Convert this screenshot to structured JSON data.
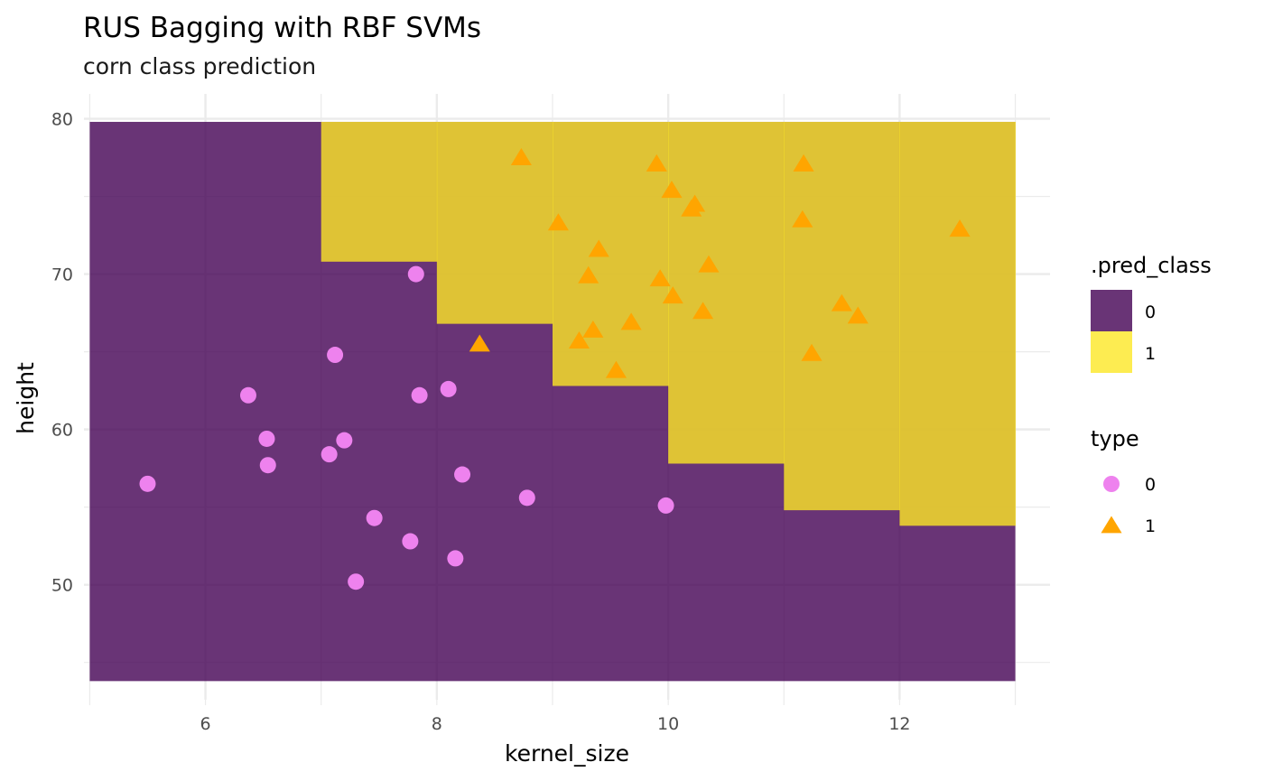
{
  "chart_data": {
    "type": "scatter",
    "title": "RUS Bagging with RBF SVMs",
    "subtitle": "corn class prediction",
    "xlabel": "kernel_size",
    "ylabel": "height",
    "xlim": [
      4.95,
      13.3
    ],
    "ylim": [
      42.6,
      81.6
    ],
    "x_ticks": [
      6,
      8,
      10,
      12
    ],
    "y_ticks": [
      50,
      60,
      70,
      80
    ],
    "x_tick_labels": [
      "6",
      "8",
      "10",
      "12"
    ],
    "y_tick_labels": [
      "50",
      "60",
      "70",
      "80"
    ],
    "x_minor_ticks": [
      5,
      7,
      9,
      11,
      13
    ],
    "y_minor_ticks": [
      45,
      55,
      65,
      75
    ],
    "grid": true,
    "colors": {
      "region_0": "#440154",
      "region_1": "#FDE725",
      "points_0": "#EE82EE",
      "points_1": "#FFA500",
      "grid": "#ebebeb"
    },
    "regions": [
      {
        "class": "1",
        "x0": 7.0,
        "x1": 8.0,
        "y0": 70.8,
        "y1": 79.8
      },
      {
        "class": "1",
        "x0": 8.0,
        "x1": 9.0,
        "y0": 66.8,
        "y1": 79.8
      },
      {
        "class": "1",
        "x0": 9.0,
        "x1": 10.0,
        "y0": 62.8,
        "y1": 79.8
      },
      {
        "class": "1",
        "x0": 10.0,
        "x1": 11.0,
        "y0": 57.8,
        "y1": 79.8
      },
      {
        "class": "1",
        "x0": 11.0,
        "x1": 12.0,
        "y0": 54.8,
        "y1": 79.8
      },
      {
        "class": "1",
        "x0": 12.0,
        "x1": 13.0,
        "y0": 53.8,
        "y1": 79.8
      }
    ],
    "grid_extent": {
      "x0": 5.0,
      "x1": 13.0,
      "y0": 43.8,
      "y1": 79.8
    },
    "series": [
      {
        "name": "0",
        "shape": "circle",
        "points": [
          {
            "x": 5.5,
            "y": 56.5
          },
          {
            "x": 6.37,
            "y": 62.2
          },
          {
            "x": 6.53,
            "y": 59.4
          },
          {
            "x": 6.54,
            "y": 57.7
          },
          {
            "x": 7.07,
            "y": 58.4
          },
          {
            "x": 7.12,
            "y": 64.8
          },
          {
            "x": 7.2,
            "y": 59.3
          },
          {
            "x": 7.3,
            "y": 50.2
          },
          {
            "x": 7.46,
            "y": 54.3
          },
          {
            "x": 7.77,
            "y": 52.8
          },
          {
            "x": 7.82,
            "y": 70.0
          },
          {
            "x": 7.85,
            "y": 62.2
          },
          {
            "x": 8.1,
            "y": 62.6
          },
          {
            "x": 8.16,
            "y": 51.7
          },
          {
            "x": 8.22,
            "y": 57.1
          },
          {
            "x": 8.78,
            "y": 55.6
          },
          {
            "x": 9.98,
            "y": 55.1
          }
        ]
      },
      {
        "name": "1",
        "shape": "triangle",
        "points": [
          {
            "x": 8.37,
            "y": 65.5
          },
          {
            "x": 8.73,
            "y": 77.5
          },
          {
            "x": 9.05,
            "y": 73.3
          },
          {
            "x": 9.23,
            "y": 65.7
          },
          {
            "x": 9.31,
            "y": 69.9
          },
          {
            "x": 9.35,
            "y": 66.4
          },
          {
            "x": 9.4,
            "y": 71.6
          },
          {
            "x": 9.55,
            "y": 63.8
          },
          {
            "x": 9.68,
            "y": 66.9
          },
          {
            "x": 9.9,
            "y": 77.1
          },
          {
            "x": 9.93,
            "y": 69.7
          },
          {
            "x": 10.03,
            "y": 75.4
          },
          {
            "x": 10.04,
            "y": 68.6
          },
          {
            "x": 10.2,
            "y": 74.2
          },
          {
            "x": 10.23,
            "y": 74.5
          },
          {
            "x": 10.3,
            "y": 67.6
          },
          {
            "x": 10.35,
            "y": 70.6
          },
          {
            "x": 11.17,
            "y": 77.1
          },
          {
            "x": 11.16,
            "y": 73.5
          },
          {
            "x": 11.24,
            "y": 64.9
          },
          {
            "x": 11.5,
            "y": 68.1
          },
          {
            "x": 11.64,
            "y": 67.3
          },
          {
            "x": 12.52,
            "y": 72.9
          }
        ]
      }
    ],
    "legend": [
      {
        "title": ".pred_class",
        "entries": [
          {
            "label": "0",
            "kind": "fill",
            "color": "#440154"
          },
          {
            "label": "1",
            "kind": "fill",
            "color": "#FDE725"
          }
        ]
      },
      {
        "title": "type",
        "entries": [
          {
            "label": "0",
            "kind": "circle",
            "color": "#EE82EE"
          },
          {
            "label": "1",
            "kind": "triangle",
            "color": "#FFA500"
          }
        ]
      }
    ],
    "legend_position": "right"
  }
}
